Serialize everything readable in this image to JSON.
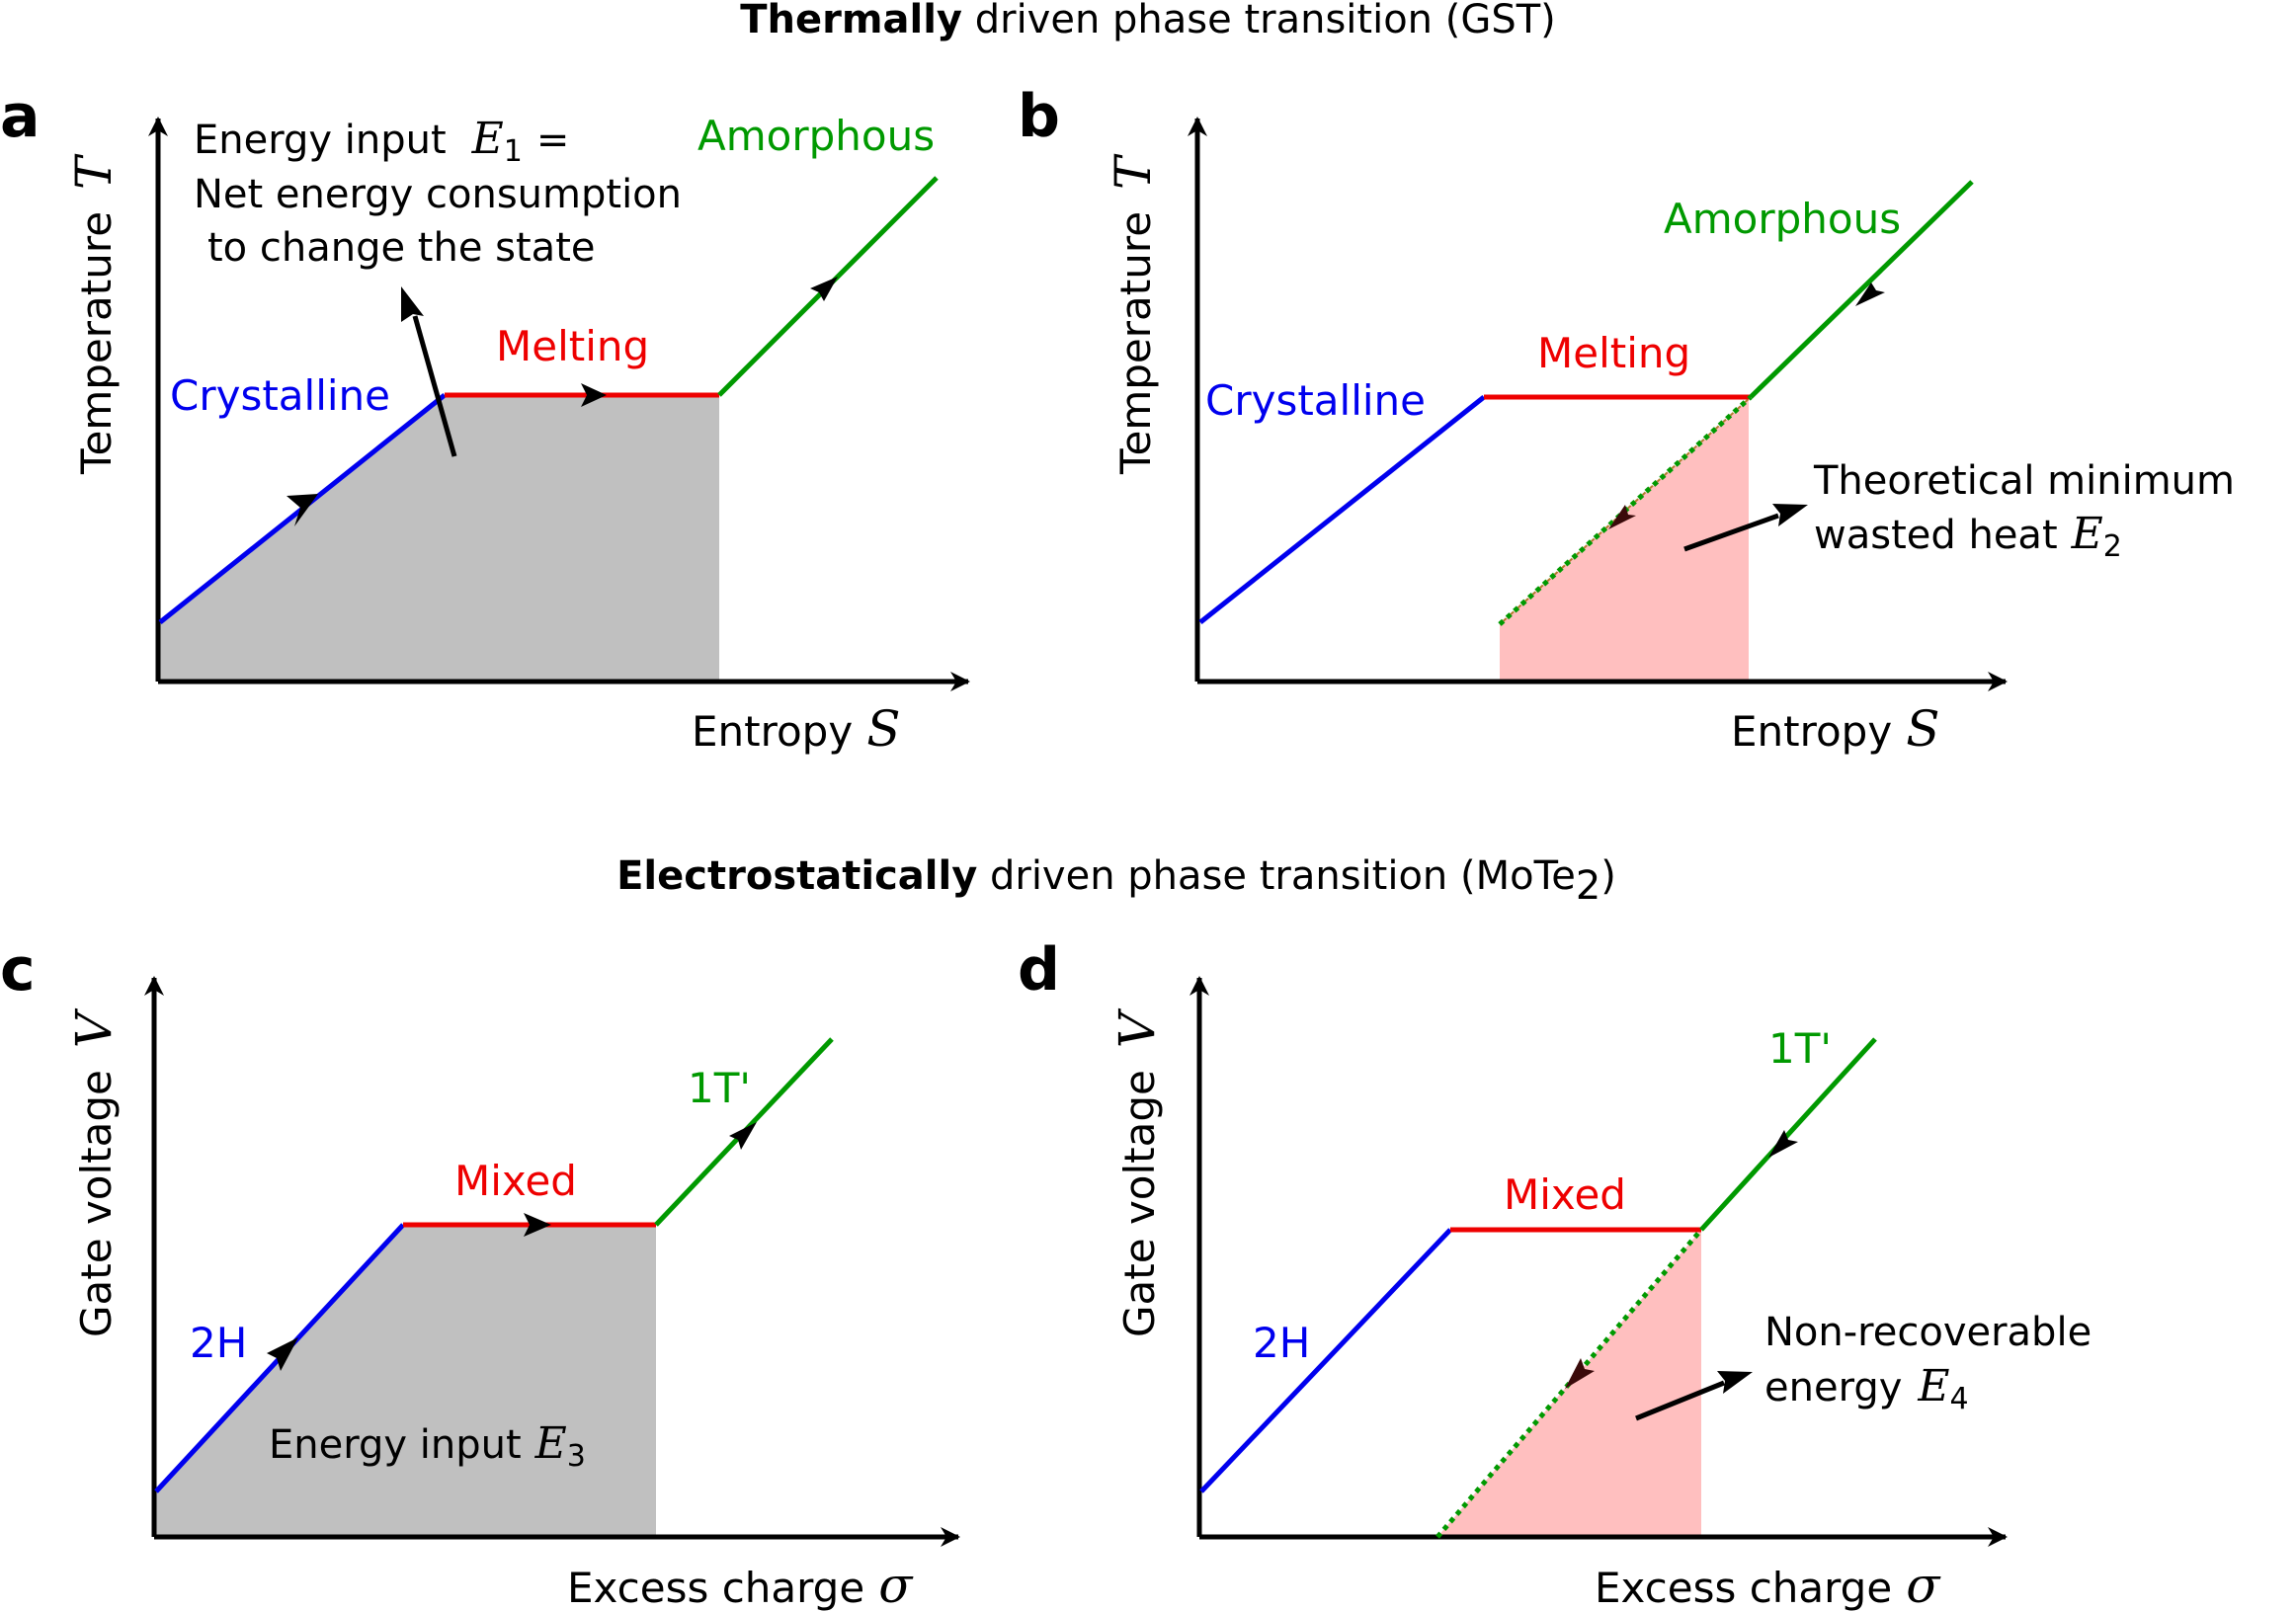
{
  "title_thermal": {
    "bold": "Thermally",
    "rest": " driven phase transition (GST)"
  },
  "title_electro": {
    "bold": "Electrostatically",
    "rest": " driven phase transition (MoTe",
    "sub": "2",
    "close": ")"
  },
  "colors": {
    "crystalline": "#0000ee",
    "melting": "#ee0000",
    "amorphous": "#009900",
    "energy_fill": "#c0c0c0",
    "waste_fill": "#ffbfbf"
  },
  "panels": {
    "a": {
      "letter": "a",
      "ylabel": "Temperature",
      "ysym": "T",
      "xlabel": "Entropy",
      "xsym": "S",
      "phase_low": "Crystalline",
      "phase_mid": "Melting",
      "phase_high": "Amorphous",
      "note_line1": "Energy input",
      "note_sym": "E",
      "note_sub": "1",
      "note_eq": "=",
      "note_line2": "Net energy consumption",
      "note_line3": "to change the state"
    },
    "b": {
      "letter": "b",
      "ylabel": "Temperature",
      "ysym": "T",
      "xlabel": "Entropy",
      "xsym": "S",
      "phase_low": "Crystalline",
      "phase_mid": "Melting",
      "phase_high": "Amorphous",
      "note_line1": "Theoretical minimum",
      "note_line2": "wasted heat",
      "note_sym": "E",
      "note_sub": "2"
    },
    "c": {
      "letter": "c",
      "ylabel": "Gate voltage",
      "ysym": "V",
      "xlabel": "Excess charge",
      "xsym": "σ",
      "phase_low": "2H",
      "phase_mid": "Mixed",
      "phase_high": "1T'",
      "note_line1": "Energy input",
      "note_sym": "E",
      "note_sub": "3"
    },
    "d": {
      "letter": "d",
      "ylabel": "Gate voltage",
      "ysym": "V",
      "xlabel": "Excess charge",
      "xsym": "σ",
      "phase_low": "2H",
      "phase_mid": "Mixed",
      "phase_high": "1T'",
      "note_line1": "Non-recoverable",
      "note_line2": "energy",
      "note_sym": "E",
      "note_sub": "4"
    }
  }
}
